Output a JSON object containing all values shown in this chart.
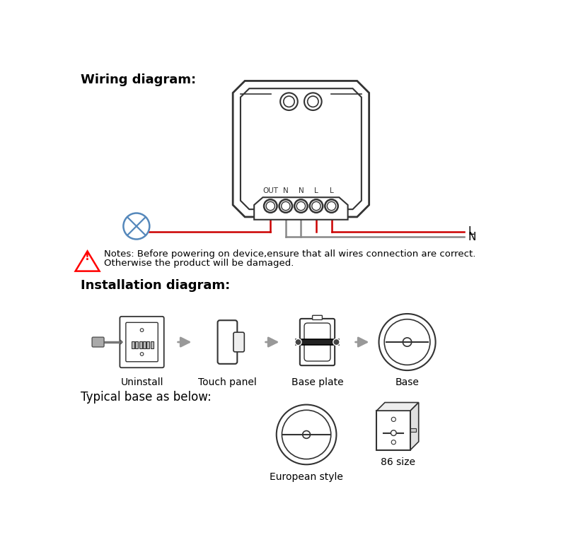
{
  "bg_color": "#ffffff",
  "title_wiring": "Wiring diagram:",
  "title_installation": "Installation diagram:",
  "title_typical": "Typical base as below:",
  "terminal_labels": [
    "OUT",
    "N",
    "N",
    "L",
    "L"
  ],
  "install_labels": [
    "Uninstall",
    "Touch panel",
    "Base plate",
    "Base"
  ],
  "typical_labels": [
    "European style",
    "86 size"
  ],
  "notes_line1": "Notes: Before powering on device,ensure that all wires connection are correct.",
  "notes_line2": "Otherwise the product will be damaged.",
  "line_color_red": "#cc0000",
  "line_color_gray": "#888888",
  "line_color_black": "#222222",
  "line_color_blue": "#5588bb",
  "device_color": "#333333",
  "arrow_color": "#999999"
}
